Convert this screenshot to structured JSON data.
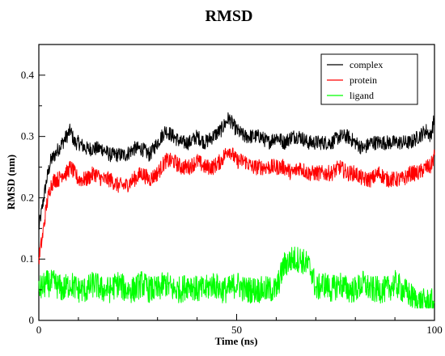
{
  "chart_data": {
    "type": "line",
    "title": "RMSD",
    "xlabel": "Time (ns)",
    "ylabel": "RMSD (nm)",
    "xlim": [
      0,
      100
    ],
    "ylim": [
      0,
      0.45
    ],
    "x_ticks": [
      0,
      50,
      100
    ],
    "x_tick_labels": [
      "0",
      "50",
      "100"
    ],
    "y_ticks": [
      0,
      0.1,
      0.2,
      0.3,
      0.4
    ],
    "y_tick_labels": [
      "0",
      "0.1",
      "0.2",
      "0.3",
      "0.4"
    ],
    "grid": false,
    "legend_position": "top-right",
    "series": [
      {
        "name": "complex",
        "color": "#000000",
        "x": [
          0,
          1,
          2,
          3,
          4,
          5,
          6,
          7,
          8,
          9,
          10,
          12,
          14,
          16,
          18,
          20,
          22,
          24,
          26,
          28,
          30,
          32,
          34,
          36,
          38,
          40,
          42,
          44,
          46,
          48,
          50,
          52,
          54,
          56,
          58,
          60,
          62,
          64,
          66,
          68,
          70,
          72,
          74,
          76,
          78,
          80,
          82,
          84,
          86,
          88,
          90,
          92,
          94,
          96,
          98,
          99,
          100
        ],
        "values": [
          0.15,
          0.19,
          0.23,
          0.26,
          0.27,
          0.28,
          0.29,
          0.3,
          0.31,
          0.29,
          0.29,
          0.28,
          0.28,
          0.28,
          0.27,
          0.27,
          0.27,
          0.28,
          0.28,
          0.27,
          0.29,
          0.31,
          0.3,
          0.29,
          0.29,
          0.3,
          0.29,
          0.3,
          0.31,
          0.33,
          0.31,
          0.3,
          0.3,
          0.3,
          0.29,
          0.3,
          0.29,
          0.3,
          0.3,
          0.29,
          0.29,
          0.29,
          0.29,
          0.3,
          0.3,
          0.29,
          0.28,
          0.29,
          0.29,
          0.29,
          0.29,
          0.29,
          0.29,
          0.3,
          0.31,
          0.3,
          0.33
        ]
      },
      {
        "name": "protein",
        "color": "#ff0000",
        "x": [
          0,
          1,
          2,
          3,
          4,
          5,
          6,
          7,
          8,
          9,
          10,
          12,
          14,
          16,
          18,
          20,
          22,
          24,
          26,
          28,
          30,
          32,
          34,
          36,
          38,
          40,
          42,
          44,
          46,
          48,
          50,
          52,
          54,
          56,
          58,
          60,
          62,
          64,
          66,
          68,
          70,
          72,
          74,
          76,
          78,
          80,
          82,
          84,
          86,
          88,
          90,
          92,
          94,
          96,
          98,
          99,
          100
        ],
        "values": [
          0.1,
          0.14,
          0.19,
          0.22,
          0.23,
          0.23,
          0.24,
          0.24,
          0.25,
          0.24,
          0.23,
          0.23,
          0.24,
          0.23,
          0.23,
          0.22,
          0.22,
          0.23,
          0.24,
          0.23,
          0.24,
          0.26,
          0.26,
          0.25,
          0.25,
          0.26,
          0.25,
          0.25,
          0.26,
          0.28,
          0.26,
          0.26,
          0.25,
          0.25,
          0.25,
          0.25,
          0.25,
          0.24,
          0.25,
          0.24,
          0.24,
          0.24,
          0.24,
          0.25,
          0.24,
          0.24,
          0.23,
          0.23,
          0.24,
          0.23,
          0.23,
          0.23,
          0.24,
          0.24,
          0.25,
          0.25,
          0.27
        ]
      },
      {
        "name": "ligand",
        "color": "#00ff00",
        "x": [
          0,
          2,
          4,
          6,
          8,
          10,
          12,
          14,
          16,
          18,
          20,
          22,
          24,
          26,
          28,
          30,
          32,
          34,
          36,
          38,
          40,
          42,
          44,
          46,
          48,
          50,
          52,
          54,
          56,
          58,
          60,
          62,
          64,
          66,
          68,
          69,
          70,
          72,
          74,
          76,
          78,
          80,
          82,
          84,
          86,
          88,
          90,
          92,
          94,
          96,
          98,
          100
        ],
        "values": [
          0.05,
          0.06,
          0.06,
          0.05,
          0.06,
          0.05,
          0.05,
          0.06,
          0.05,
          0.05,
          0.06,
          0.05,
          0.05,
          0.06,
          0.05,
          0.05,
          0.06,
          0.05,
          0.05,
          0.06,
          0.05,
          0.05,
          0.06,
          0.05,
          0.05,
          0.06,
          0.05,
          0.05,
          0.05,
          0.05,
          0.05,
          0.09,
          0.1,
          0.1,
          0.09,
          0.08,
          0.05,
          0.06,
          0.05,
          0.06,
          0.05,
          0.05,
          0.06,
          0.05,
          0.05,
          0.05,
          0.06,
          0.05,
          0.04,
          0.03,
          0.03,
          0.03
        ]
      }
    ]
  }
}
